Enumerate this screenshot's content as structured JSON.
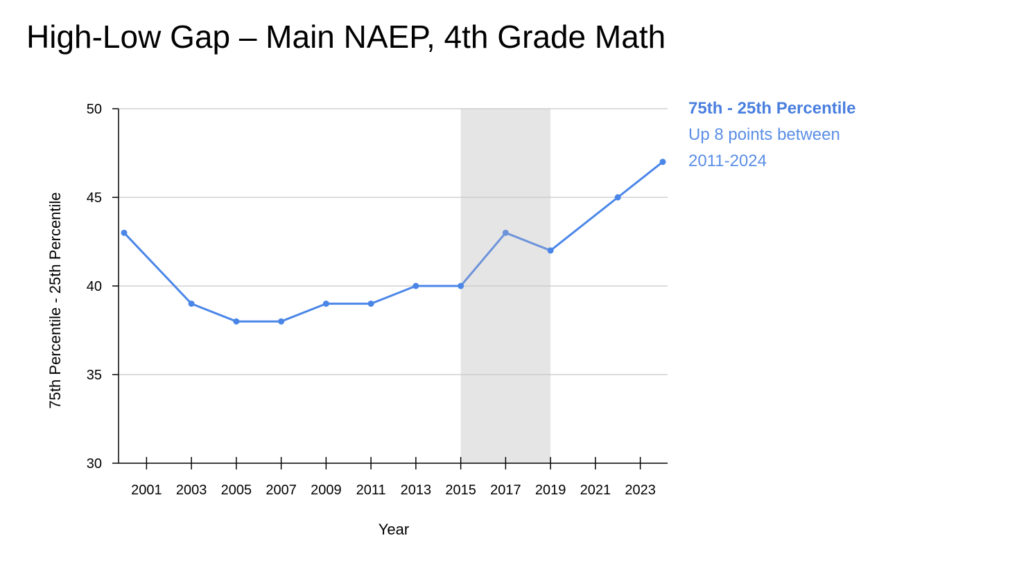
{
  "slide": {
    "title": "High-Low Gap – Main NAEP, 4th Grade Math"
  },
  "annotation": {
    "heading": "75th - 25th Percentile",
    "line1": "Up 8 points between",
    "line2": "2011-2024"
  },
  "colors": {
    "line": "#4a86e8",
    "line_shaded": "#6d93db",
    "shade": "#e5e5e5",
    "grid": "#c8c8c8",
    "axis": "#000000",
    "annotation": "#5b8ee6"
  },
  "chart_data": {
    "type": "line",
    "title": "",
    "xlabel": "Year",
    "ylabel": "75th Percentile - 25th Percentile",
    "xlim": [
      2000,
      2024
    ],
    "ylim": [
      30,
      50
    ],
    "y_ticks": [
      "30",
      "35",
      "40",
      "45",
      "50"
    ],
    "x_ticks": [
      "2001",
      "2003",
      "2005",
      "2007",
      "2009",
      "2011",
      "2013",
      "2015",
      "2017",
      "2019",
      "2021",
      "2023"
    ],
    "grid": true,
    "shaded_region": {
      "from": 2015,
      "to": 2019
    },
    "series": [
      {
        "x": [
          2000,
          2003,
          2005,
          2007,
          2009,
          2011,
          2013,
          2015,
          2017,
          2019,
          2022,
          2024
        ],
        "y": [
          43,
          39,
          38,
          38,
          39,
          39,
          40,
          40,
          43,
          42,
          45,
          47
        ]
      }
    ]
  }
}
